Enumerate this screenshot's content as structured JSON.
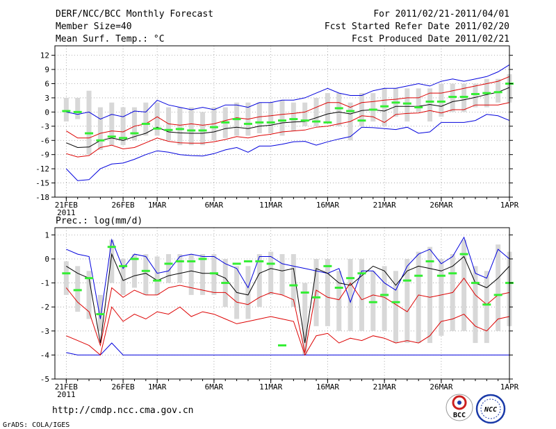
{
  "header": {
    "title": "DERF/NCC/BCC Monthly Forecast",
    "member_size": "Member Size=40",
    "variable": "Mean Surf. Temp.: °C",
    "period": "For 2011/02/21-2011/04/01",
    "started": "Fcst Started Refer Date 2011/02/20",
    "produced": "Fcst Produced Date 2011/02/21"
  },
  "footer": {
    "url": "http://cmdp.ncc.cma.gov.cn",
    "credit": "GrADS: COLA/IGES",
    "logo1_text": "BCC",
    "logo2_text": "NCC"
  },
  "colors": {
    "outer": "#0000dd",
    "inner": "#dd0000",
    "median": "#000000",
    "bar": "#d8d8d8",
    "mark": "#33ee33"
  },
  "chart_data": [
    {
      "type": "line",
      "title": "Mean Surf. Temp.: °C",
      "ylabel": "Mean Surf. Temp. (°C)",
      "ylim": [
        -18,
        14
      ],
      "yticks": [
        -18,
        -15,
        -12,
        -9,
        -6,
        -3,
        0,
        3,
        6,
        9,
        12
      ],
      "ytick_labels": [
        "-18",
        "-15",
        "-12",
        "-9",
        "-6",
        "-3",
        "0",
        "3",
        "6",
        "9",
        "12"
      ],
      "xlim": [
        0,
        40
      ],
      "xticks": [
        1,
        6,
        9,
        14,
        19,
        24,
        29,
        34,
        40
      ],
      "xtick_labels": [
        "21FEB",
        "26FEB",
        "1MAR",
        "6MAR",
        "11MAR",
        "16MAR",
        "21MAR",
        "26MAR",
        "1APR"
      ],
      "year_label": "2011",
      "x": [
        1,
        2,
        3,
        4,
        5,
        6,
        7,
        8,
        9,
        10,
        11,
        12,
        13,
        14,
        15,
        16,
        17,
        18,
        19,
        20,
        21,
        22,
        23,
        24,
        25,
        26,
        27,
        28,
        29,
        30,
        31,
        32,
        33,
        34,
        35,
        36,
        37,
        38,
        39,
        40
      ],
      "series": [
        {
          "name": "max",
          "color": "blue",
          "values": [
            -12,
            -14.5,
            -14.3,
            -12,
            -11,
            -10.8,
            -10,
            -9,
            -8.2,
            -8.5,
            -9,
            -9.2,
            -9.3,
            -8.8,
            -8,
            -7.5,
            -8.5,
            -7.2,
            -7.2,
            -6.8,
            -6.3,
            -6.2,
            -7,
            -6.3,
            -5.7,
            -5.2,
            -3.2,
            -3.3,
            -3.5,
            -3.7,
            -3.2,
            -4.5,
            -4.2,
            -2.2,
            -2.2,
            -2.2,
            -1.8,
            -0.5,
            -0.8,
            -1.8
          ]
        },
        {
          "name": "max",
          "color": "blue",
          "values": [
            0,
            -0.5,
            0,
            -1.5,
            -0.5,
            -1,
            0.2,
            0,
            2.5,
            1.5,
            1,
            0.5,
            1,
            0.5,
            1.5,
            1.5,
            1,
            2,
            2,
            2.5,
            2.5,
            3,
            4,
            5,
            4,
            3.5,
            3.5,
            4.5,
            5,
            5,
            5.5,
            6,
            5.5,
            6.5,
            7,
            6.5,
            7,
            7.5,
            8.5,
            10
          ]
        },
        {
          "name": "q1",
          "color": "red",
          "values": [
            -8.8,
            -9.5,
            -9.2,
            -7.5,
            -7,
            -7.8,
            -7.5,
            -6.5,
            -5.5,
            -6.2,
            -6.5,
            -6.6,
            -6.6,
            -6.3,
            -5.8,
            -5.2,
            -5.5,
            -5,
            -4.7,
            -4.2,
            -4,
            -3.8,
            -3.2,
            -3,
            -2.5,
            -2,
            -0.8,
            -1,
            -2.2,
            -0.5,
            -0.3,
            -0.2,
            0.3,
            -0.2,
            0.5,
            0.5,
            1.5,
            1.5,
            1.5,
            2
          ]
        },
        {
          "name": "q3",
          "color": "red",
          "values": [
            -4,
            -5.5,
            -5.5,
            -4.5,
            -4,
            -4.2,
            -3,
            -2.5,
            -1,
            -2.5,
            -2.8,
            -2.5,
            -2.8,
            -2.5,
            -1.8,
            -1.2,
            -1.5,
            -1,
            -0.8,
            -0.5,
            -0.3,
            0,
            1,
            2,
            2,
            1,
            2,
            2.2,
            2.5,
            2.7,
            3,
            3,
            4,
            4,
            4.5,
            5,
            5.5,
            6,
            6.5,
            7.5
          ]
        },
        {
          "name": "median",
          "color": "black",
          "values": [
            -6.5,
            -7.5,
            -7.4,
            -6,
            -5.5,
            -6,
            -5.2,
            -4.5,
            -3.2,
            -4.2,
            -4.4,
            -4.5,
            -4.5,
            -4.2,
            -3.5,
            -3.2,
            -3.5,
            -3,
            -2.8,
            -2.3,
            -2.1,
            -2,
            -1.2,
            -0.4,
            0,
            -0.4,
            0.3,
            0.5,
            0.2,
            1.2,
            1.2,
            1.2,
            1.6,
            1.2,
            2.2,
            2.6,
            3.1,
            3.7,
            4.2,
            5.2
          ]
        },
        {
          "name": "ensemble",
          "color": "green",
          "values": [
            0.2,
            0,
            -4.5,
            -6,
            -5.2,
            -5.5,
            -4.5,
            -2.5,
            -3.5,
            -3.8,
            -3.6,
            -3.9,
            -3.9,
            -3.2,
            -2.2,
            -1.5,
            -2.5,
            -2.2,
            -2.2,
            -1.8,
            -1.5,
            -1.8,
            -2,
            -2.2,
            0.8,
            0.2,
            -1.8,
            0.5,
            1.2,
            2,
            1.8,
            1,
            2.2,
            2.2,
            3.2,
            3.2,
            3.8,
            4,
            4.2,
            6
          ]
        },
        {
          "name": "ensemble_box_low",
          "color": "gray",
          "values": [
            -2,
            -1.5,
            -9,
            -8,
            -7,
            -7,
            -6,
            -5,
            -5,
            -6,
            -7,
            -7,
            -7,
            -6,
            -5.5,
            -5,
            -5,
            -4.5,
            -4.5,
            -5,
            -4,
            -3,
            -3,
            -2,
            -3,
            -6,
            -3,
            -2,
            -3,
            -1,
            -2,
            0,
            -2,
            -1,
            0,
            0,
            1,
            1,
            2,
            2
          ]
        },
        {
          "name": "ensemble_box_high",
          "color": "gray",
          "values": [
            3,
            3,
            4.5,
            1,
            2,
            1,
            1,
            2,
            2,
            1,
            1,
            1,
            0,
            1,
            1,
            2,
            2,
            2,
            2,
            2.5,
            2,
            2,
            3,
            4,
            4,
            2,
            4,
            4,
            5,
            5,
            5,
            5,
            5,
            6,
            6,
            6,
            6,
            7,
            7,
            8
          ]
        }
      ]
    },
    {
      "type": "line",
      "title": "Prec.: log(mm/d)",
      "ylabel": "Prec. log(mm/d)",
      "ylim": [
        -5,
        1.3
      ],
      "yticks": [
        -5,
        -4,
        -3,
        -2,
        -1,
        0,
        1
      ],
      "ytick_labels": [
        "-5",
        "-4",
        "-3",
        "-2",
        "-1",
        "0",
        "1"
      ],
      "xlim": [
        0,
        40
      ],
      "xticks": [
        1,
        6,
        9,
        14,
        19,
        24,
        29,
        34,
        40
      ],
      "xtick_labels": [
        "21FEB",
        "26FEB",
        "1MAR",
        "6MAR",
        "11MAR",
        "16MAR",
        "21MAR",
        "26MAR",
        "1APR"
      ],
      "year_label": "2011",
      "x": [
        1,
        2,
        3,
        4,
        5,
        6,
        7,
        8,
        9,
        10,
        11,
        12,
        13,
        14,
        15,
        16,
        17,
        18,
        19,
        20,
        21,
        22,
        23,
        24,
        25,
        26,
        27,
        28,
        29,
        30,
        31,
        32,
        33,
        34,
        35,
        36,
        37,
        38,
        39,
        40
      ],
      "series": [
        {
          "name": "max",
          "color": "blue",
          "values": [
            0.4,
            0.2,
            0.1,
            -2.5,
            0.8,
            -0.4,
            0.2,
            0.1,
            -0.6,
            -0.5,
            0.1,
            0.2,
            0.1,
            0.1,
            -0.2,
            -0.4,
            -1.2,
            0.1,
            0.1,
            -0.2,
            -0.3,
            -0.4,
            -0.5,
            -0.6,
            -0.4,
            -1.8,
            -0.5,
            -0.5,
            -1,
            -1.3,
            -0.3,
            0.2,
            0.4,
            -0.2,
            0.1,
            0.9,
            -0.6,
            -0.8,
            0.4,
            0
          ]
        },
        {
          "name": "min",
          "color": "blue",
          "values": [
            -3.9,
            -4,
            -4,
            -4,
            -3.5,
            -4,
            -4,
            -4,
            -4,
            -4,
            -4,
            -4,
            -4,
            -4,
            -4,
            -4,
            -4,
            -4,
            -4,
            -4,
            -4,
            -4,
            -4,
            -4,
            -4,
            -4,
            -4,
            -4,
            -4,
            -4,
            -4,
            -4,
            -4,
            -4,
            -4,
            -4,
            -4,
            -4,
            -4,
            -4
          ]
        },
        {
          "name": "q1",
          "color": "red",
          "values": [
            -1.2,
            -1.8,
            -2.2,
            -3.6,
            -1.2,
            -1.6,
            -1.3,
            -1.5,
            -1.5,
            -1.2,
            -1.1,
            -1.2,
            -1.3,
            -1.4,
            -1.4,
            -1.8,
            -1.9,
            -1.6,
            -1.4,
            -1.5,
            -1.7,
            -3.9,
            -1.3,
            -1.6,
            -1.7,
            -1,
            -1.7,
            -1.5,
            -1.6,
            -1.9,
            -2.2,
            -1.5,
            -1.6,
            -1.5,
            -1.4,
            -0.8,
            -1.5,
            -1.9,
            -1.5,
            -1.4
          ]
        },
        {
          "name": "q3",
          "color": "red",
          "values": [
            -3.2,
            -3.4,
            -3.6,
            -4,
            -2,
            -2.6,
            -2.3,
            -2.5,
            -2.2,
            -2.3,
            -2,
            -2.4,
            -2.2,
            -2.3,
            -2.5,
            -2.7,
            -2.6,
            -2.5,
            -2.4,
            -2.5,
            -2.6,
            -4,
            -3.2,
            -3.1,
            -3.5,
            -3.3,
            -3.4,
            -3.2,
            -3.3,
            -3.5,
            -3.4,
            -3.5,
            -3.2,
            -2.6,
            -2.5,
            -2.3,
            -2.8,
            -3,
            -2.5,
            -2.4
          ]
        },
        {
          "name": "median",
          "color": "black",
          "values": [
            -0.3,
            -0.6,
            -0.8,
            -3.5,
            0.2,
            -0.9,
            -0.7,
            -0.6,
            -0.9,
            -0.7,
            -0.6,
            -0.5,
            -0.6,
            -0.6,
            -0.8,
            -1.4,
            -1.5,
            -0.6,
            -0.4,
            -0.5,
            -0.4,
            -3.5,
            -0.4,
            -0.6,
            -1,
            -1.1,
            -0.7,
            -0.3,
            -0.5,
            -1.1,
            -0.5,
            -0.3,
            -0.4,
            -0.5,
            -0.3,
            0.1,
            -1,
            -1.2,
            -0.8,
            -0.3
          ]
        },
        {
          "name": "ensemble",
          "color": "green",
          "values": [
            -0.6,
            -1.3,
            -0.8,
            -2.3,
            0.5,
            -0.3,
            0,
            -0.5,
            -0.9,
            -0.2,
            -0.1,
            -0.1,
            0,
            -0.6,
            -1,
            -0.2,
            -0.1,
            -0.1,
            -0.2,
            -3.6,
            -1.1,
            -1.4,
            -1.6,
            -0.3,
            -1.2,
            -0.8,
            -0.6,
            -1.8,
            -1.5,
            -1.8,
            -0.9,
            -0.7,
            -0.1,
            -0.7,
            -0.6,
            0.2,
            -1,
            -1.9,
            -1.5,
            -1
          ]
        },
        {
          "name": "ensemble_box_low",
          "color": "gray",
          "values": [
            -1.5,
            -2.2,
            -2.5,
            -3,
            -1,
            -1.5,
            -1.2,
            -1.5,
            -1.5,
            -1,
            -1,
            -1.5,
            -1.5,
            -1.5,
            -2,
            -2.5,
            -2.5,
            -2,
            -1.5,
            -1.5,
            -2,
            -4,
            -2.8,
            -2.8,
            -3,
            -3,
            -3,
            -3,
            -3,
            -3.5,
            -3.5,
            -3.5,
            -3.5,
            -3.2,
            -3,
            -3,
            -3.5,
            -3.5,
            -3,
            -2.8
          ]
        },
        {
          "name": "ensemble_box_high",
          "color": "gray",
          "values": [
            -0.1,
            -0.3,
            -0.5,
            -1.5,
            0.8,
            0,
            0.2,
            0.2,
            0.1,
            0.2,
            0.2,
            0.2,
            0.2,
            0.2,
            0,
            -0.3,
            -0.3,
            0.2,
            0.3,
            0.2,
            0.2,
            -1,
            0,
            0,
            -0.5,
            0,
            0,
            -0.5,
            -0.3,
            -0.5,
            0,
            0.3,
            0.5,
            0,
            0.2,
            0.8,
            -0.3,
            -0.5,
            0.6,
            0.3
          ]
        }
      ]
    }
  ]
}
